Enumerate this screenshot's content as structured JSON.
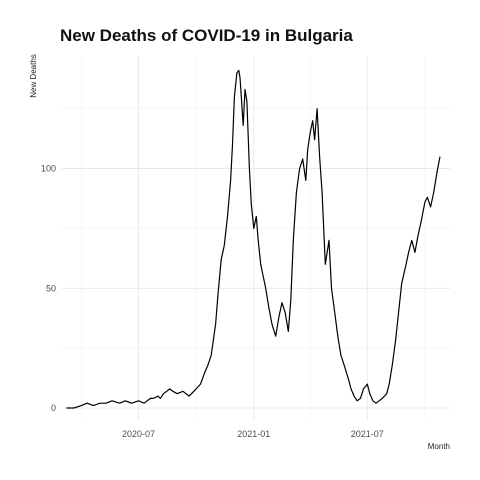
{
  "chart_data": {
    "type": "line",
    "title": "New Deaths of COVID-19 in Bulgaria",
    "xlabel": "Month",
    "ylabel": "New Deaths",
    "x_ticks": [
      "2020-07",
      "2021-01",
      "2021-07"
    ],
    "y_ticks": [
      0,
      50,
      100
    ],
    "ylim": [
      -5,
      147
    ],
    "xlim": [
      "2020-03-01",
      "2021-11-10"
    ],
    "grid": true,
    "series": [
      {
        "x": [
          "2020-03-08",
          "2020-03-20",
          "2020-04-01",
          "2020-04-10",
          "2020-04-20",
          "2020-05-01",
          "2020-05-10",
          "2020-05-20",
          "2020-06-01",
          "2020-06-10",
          "2020-06-20",
          "2020-07-01",
          "2020-07-10",
          "2020-07-20",
          "2020-07-25",
          "2020-08-01",
          "2020-08-05",
          "2020-08-10",
          "2020-08-15",
          "2020-08-20",
          "2020-08-25",
          "2020-09-01",
          "2020-09-10",
          "2020-09-20",
          "2020-10-01",
          "2020-10-08",
          "2020-10-15",
          "2020-10-20",
          "2020-10-25",
          "2020-11-01",
          "2020-11-05",
          "2020-11-10",
          "2020-11-15",
          "2020-11-20",
          "2020-11-25",
          "2020-11-28",
          "2020-12-01",
          "2020-12-05",
          "2020-12-08",
          "2020-12-10",
          "2020-12-12",
          "2020-12-15",
          "2020-12-18",
          "2020-12-21",
          "2020-12-25",
          "2020-12-28",
          "2021-01-01",
          "2021-01-05",
          "2021-01-08",
          "2021-01-12",
          "2021-01-16",
          "2021-01-20",
          "2021-01-25",
          "2021-01-30",
          "2021-02-05",
          "2021-02-10",
          "2021-02-15",
          "2021-02-20",
          "2021-02-25",
          "2021-03-01",
          "2021-03-05",
          "2021-03-10",
          "2021-03-15",
          "2021-03-20",
          "2021-03-25",
          "2021-03-28",
          "2021-04-01",
          "2021-04-05",
          "2021-04-08",
          "2021-04-12",
          "2021-04-16",
          "2021-04-20",
          "2021-04-25",
          "2021-05-01",
          "2021-05-05",
          "2021-05-10",
          "2021-05-15",
          "2021-05-20",
          "2021-05-25",
          "2021-06-01",
          "2021-06-05",
          "2021-06-10",
          "2021-06-15",
          "2021-06-20",
          "2021-06-25",
          "2021-07-01",
          "2021-07-05",
          "2021-07-10",
          "2021-07-15",
          "2021-07-20",
          "2021-07-25",
          "2021-08-01",
          "2021-08-05",
          "2021-08-10",
          "2021-08-15",
          "2021-08-20",
          "2021-08-25",
          "2021-09-01",
          "2021-09-05",
          "2021-09-10",
          "2021-09-15",
          "2021-09-20",
          "2021-09-25",
          "2021-10-01",
          "2021-10-05",
          "2021-10-10",
          "2021-10-15",
          "2021-10-20",
          "2021-10-25"
        ],
        "values": [
          0,
          0,
          1,
          2,
          1,
          2,
          2,
          3,
          2,
          3,
          2,
          3,
          2,
          4,
          4,
          5,
          4,
          6,
          7,
          8,
          7,
          6,
          7,
          5,
          8,
          10,
          15,
          18,
          22,
          35,
          48,
          62,
          68,
          80,
          95,
          110,
          130,
          140,
          141,
          138,
          130,
          118,
          133,
          128,
          100,
          85,
          75,
          80,
          70,
          60,
          55,
          50,
          42,
          35,
          30,
          38,
          44,
          40,
          32,
          45,
          70,
          90,
          100,
          104,
          95,
          108,
          115,
          120,
          112,
          125,
          105,
          90,
          60,
          70,
          50,
          40,
          30,
          22,
          18,
          12,
          8,
          5,
          3,
          4,
          8,
          10,
          6,
          3,
          2,
          3,
          4,
          6,
          10,
          18,
          28,
          40,
          52,
          60,
          65,
          70,
          65,
          72,
          78,
          86,
          88,
          84,
          90,
          98,
          105
        ]
      }
    ]
  }
}
